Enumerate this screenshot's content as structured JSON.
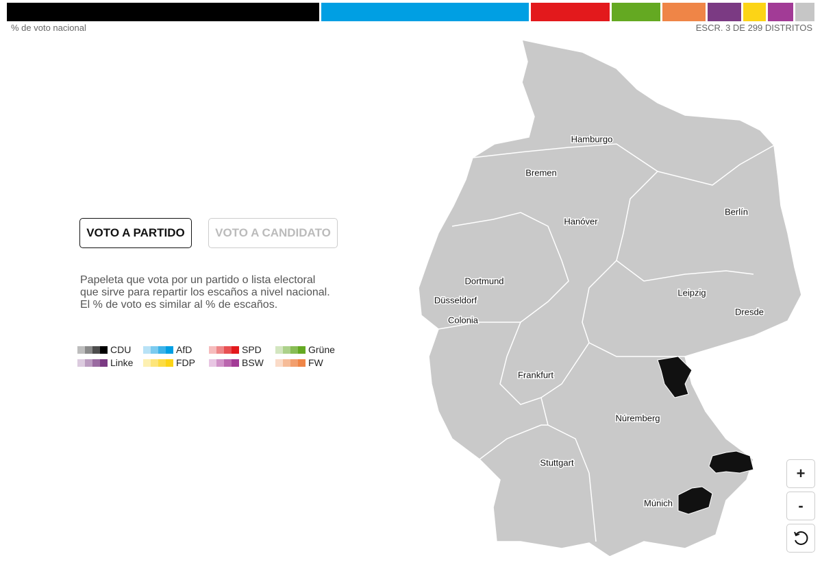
{
  "header": {
    "left_label": "% de voto nacional",
    "right_label": "ESCR. 3 DE 299 DISTRITOS"
  },
  "vote_bar": [
    {
      "color": "#000000",
      "value": 39.4
    },
    {
      "color": "#009fe3",
      "value": 26.2
    },
    {
      "color": "#e3191c",
      "value": 9.9
    },
    {
      "color": "#64a922",
      "value": 6.2
    },
    {
      "color": "#ef8547",
      "value": 5.4
    },
    {
      "color": "#7b3a83",
      "value": 4.2
    },
    {
      "color": "#fcd416",
      "value": 2.9
    },
    {
      "color": "#a23b96",
      "value": 3.2
    },
    {
      "color": "#c6c6c6",
      "value": 2.4
    }
  ],
  "tabs": [
    "VOTO A PARTIDO",
    "VOTO A CANDIDATO"
  ],
  "description": [
    "Papeleta que vota por un partido o lista electoral",
    "que sirve para repartir los escaños a nivel nacional.",
    "El % de voto es similar al % de escaños."
  ],
  "legend": [
    {
      "name": "CDU",
      "shades": [
        "#bdbdbd",
        "#8a8a8a",
        "#4d4d4d",
        "#000000"
      ]
    },
    {
      "name": "AfD",
      "shades": [
        "#b8e2f6",
        "#7ccbef",
        "#3db3e9",
        "#009fe3"
      ]
    },
    {
      "name": "SPD",
      "shades": [
        "#f6bcbd",
        "#ee8789",
        "#e85053",
        "#e3191c"
      ]
    },
    {
      "name": "Grüne",
      "shades": [
        "#d3e6c0",
        "#acd18a",
        "#88bd55",
        "#64a922"
      ]
    },
    {
      "name": "Linke",
      "shades": [
        "#dccbdf",
        "#bb9cc0",
        "#9a6ba1",
        "#7b3a83"
      ]
    },
    {
      "name": "FDP",
      "shades": [
        "#fdf0b2",
        "#fde57a",
        "#fcdc45",
        "#fcd416"
      ]
    },
    {
      "name": "BSW",
      "shades": [
        "#e8c6e3",
        "#d193c8",
        "#ba66ae",
        "#a23b96"
      ]
    },
    {
      "name": "FW",
      "shades": [
        "#fadbc8",
        "#f6bc98",
        "#f29f6e",
        "#ef8547"
      ]
    }
  ],
  "map": {
    "cities": [
      "Hamburgo",
      "Bremen",
      "Hanóver",
      "Berlín",
      "Dortmund",
      "Düsseldorf",
      "Colonia",
      "Leipzig",
      "Dresde",
      "Frankfurt",
      "Núremberg",
      "Stuttgart",
      "Múnich"
    ]
  },
  "controls": [
    "+",
    "-"
  ]
}
